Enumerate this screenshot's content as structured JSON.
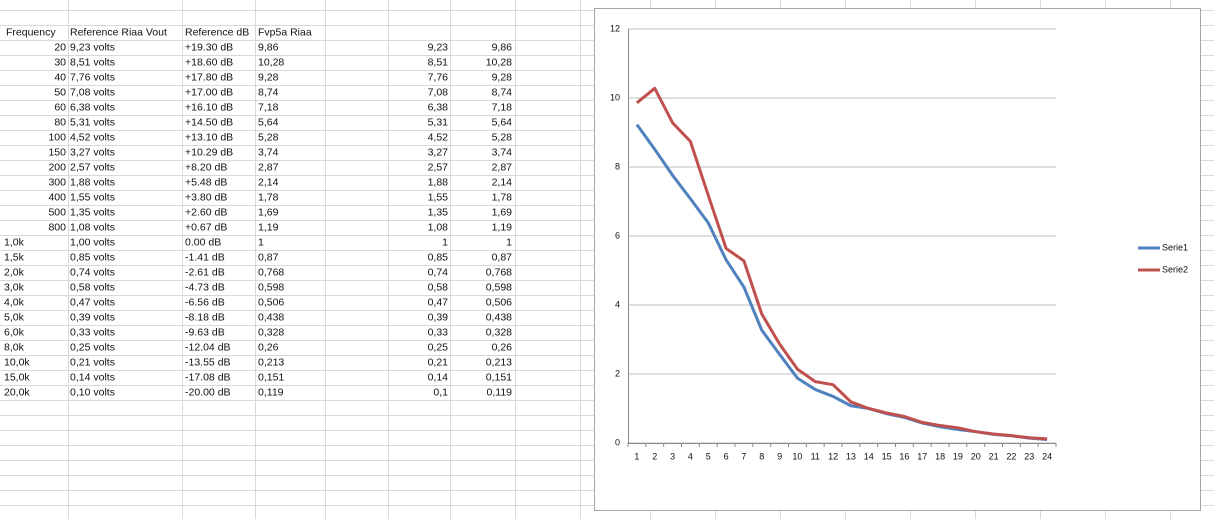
{
  "table": {
    "header": [
      "Frequency",
      "Reference Riaa Vout",
      "Reference dB",
      "Fvp5a Riaa"
    ],
    "rows": [
      [
        "20",
        "9,23 volts",
        "+19.30 dB",
        "9,86",
        "9,23",
        "9,86"
      ],
      [
        "30",
        "8,51 volts",
        "+18.60 dB",
        "10,28",
        "8,51",
        "10,28"
      ],
      [
        "40",
        "7,76 volts",
        "+17.80 dB",
        "9,28",
        "7,76",
        "9,28"
      ],
      [
        "50",
        "7,08 volts",
        "+17.00 dB",
        "8,74",
        "7,08",
        "8,74"
      ],
      [
        "60",
        "6,38 volts",
        "+16.10 dB",
        "7,18",
        "6,38",
        "7,18"
      ],
      [
        "80",
        "5,31 volts",
        "+14.50 dB",
        "5,64",
        "5,31",
        "5,64"
      ],
      [
        "100",
        "4,52 volts",
        "+13.10 dB",
        "5,28",
        "4,52",
        "5,28"
      ],
      [
        "150",
        "3,27 volts",
        "+10.29 dB",
        "3,74",
        "3,27",
        "3,74"
      ],
      [
        "200",
        "2,57 volts",
        "+8.20 dB",
        "2,87",
        "2,57",
        "2,87"
      ],
      [
        "300",
        "1,88 volts",
        "+5.48 dB",
        "2,14",
        "1,88",
        "2,14"
      ],
      [
        "400",
        "1,55 volts",
        "+3.80 dB",
        "1,78",
        "1,55",
        "1,78"
      ],
      [
        "500",
        "1,35 volts",
        "+2.60 dB",
        "1,69",
        "1,35",
        "1,69"
      ],
      [
        "800",
        "1,08 volts",
        "+0.67 dB",
        "1,19",
        "1,08",
        "1,19"
      ],
      [
        "1,0k",
        "1,00 volts",
        "0.00 dB",
        "1",
        "1",
        "1"
      ],
      [
        "1,5k",
        "0,85 volts",
        "-1.41 dB",
        "0,87",
        "0,85",
        "0,87"
      ],
      [
        "2,0k",
        "0,74 volts",
        "-2.61 dB",
        "0,768",
        "0,74",
        "0,768"
      ],
      [
        "3,0k",
        "0,58 volts",
        "-4.73 dB",
        "0,598",
        "0,58",
        "0,598"
      ],
      [
        "4,0k",
        "0,47 volts",
        "-6.56 dB",
        "0,506",
        "0,47",
        "0,506"
      ],
      [
        "5,0k",
        "0,39 volts",
        "-8.18 dB",
        "0,438",
        "0,39",
        "0,438"
      ],
      [
        "6,0k",
        "0,33 volts",
        "-9.63 dB",
        "0,328",
        "0,33",
        "0,328"
      ],
      [
        "8,0k",
        "0,25 volts",
        "-12.04 dB",
        "0,26",
        "0,25",
        "0,26"
      ],
      [
        "10,0k",
        "0,21 volts",
        "-13.55 dB",
        "0,213",
        "0,21",
        "0,213"
      ],
      [
        "15,0k",
        "0,14 volts",
        "-17.08 dB",
        "0,151",
        "0,14",
        "0,151"
      ],
      [
        "20,0k",
        "0,10 volts",
        "-20.00 dB",
        "0,119",
        "0,1",
        "0,119"
      ]
    ]
  },
  "chart_data": {
    "type": "line",
    "categories": [
      "1",
      "2",
      "3",
      "4",
      "5",
      "6",
      "7",
      "8",
      "9",
      "10",
      "11",
      "12",
      "13",
      "14",
      "15",
      "16",
      "17",
      "18",
      "19",
      "20",
      "21",
      "22",
      "23",
      "24"
    ],
    "series": [
      {
        "name": "Serie1",
        "color": "#4f81bd",
        "values": [
          9.23,
          8.51,
          7.76,
          7.08,
          6.38,
          5.31,
          4.52,
          3.27,
          2.57,
          1.88,
          1.55,
          1.35,
          1.08,
          1,
          0.85,
          0.74,
          0.58,
          0.47,
          0.39,
          0.33,
          0.25,
          0.21,
          0.14,
          0.1
        ]
      },
      {
        "name": "Serie2",
        "color": "#c0504d",
        "values": [
          9.86,
          10.28,
          9.28,
          8.74,
          7.18,
          5.64,
          5.28,
          3.74,
          2.87,
          2.14,
          1.78,
          1.69,
          1.19,
          1,
          0.87,
          0.768,
          0.598,
          0.506,
          0.438,
          0.328,
          0.26,
          0.213,
          0.151,
          0.119
        ]
      }
    ],
    "ylim": [
      0,
      12
    ],
    "yticks": [
      0,
      2,
      4,
      6,
      8,
      10,
      12
    ],
    "grid": true,
    "legend": "right"
  }
}
